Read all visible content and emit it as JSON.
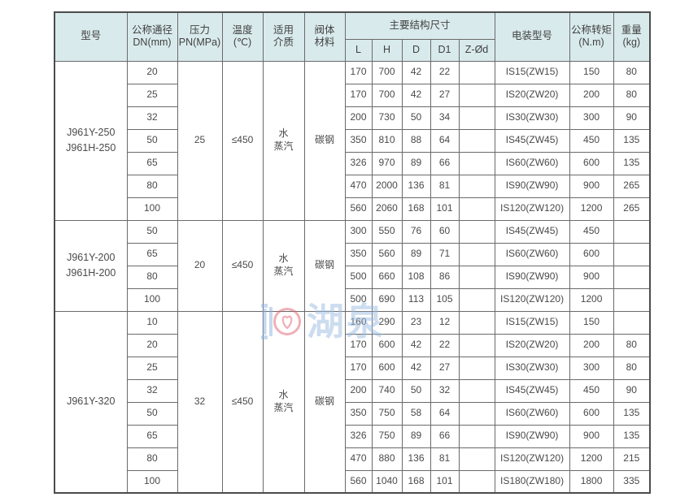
{
  "table": {
    "header": {
      "model": "型号",
      "dn": "公称通径\nDN(mm)",
      "pn": "压力\nPN(MPa)",
      "temp": "温度\n(℃)",
      "medium": "适用\n介质",
      "material": "阀体\n材料",
      "dims_group": "主要结构尺寸",
      "dims": [
        "L",
        "H",
        "D",
        "D1",
        "Z-Ød"
      ],
      "device": "电装型号",
      "torque": "公称转矩\n(N.m)",
      "weight": "重量\n(kg)"
    },
    "sections": [
      {
        "model": "J961Y-250\nJ961H-250",
        "pn": "25",
        "temp": "≤450",
        "medium": "水\n蒸汽",
        "material": "碳钢",
        "rows": [
          {
            "dn": "20",
            "l": "170",
            "h": "700",
            "d": "42",
            "d1": "22",
            "zod": "",
            "device": "IS15(ZW15)",
            "torque": "150",
            "weight": "80"
          },
          {
            "dn": "25",
            "l": "170",
            "h": "700",
            "d": "42",
            "d1": "27",
            "zod": "",
            "device": "IS20(ZW20)",
            "torque": "200",
            "weight": "80"
          },
          {
            "dn": "32",
            "l": "200",
            "h": "730",
            "d": "50",
            "d1": "34",
            "zod": "",
            "device": "IS30(ZW30)",
            "torque": "300",
            "weight": "90"
          },
          {
            "dn": "50",
            "l": "350",
            "h": "810",
            "d": "88",
            "d1": "64",
            "zod": "",
            "device": "IS45(ZW45)",
            "torque": "450",
            "weight": "135"
          },
          {
            "dn": "65",
            "l": "326",
            "h": "970",
            "d": "89",
            "d1": "66",
            "zod": "",
            "device": "IS60(ZW60)",
            "torque": "600",
            "weight": "135"
          },
          {
            "dn": "80",
            "l": "470",
            "h": "2000",
            "d": "136",
            "d1": "81",
            "zod": "",
            "device": "IS90(ZW90)",
            "torque": "900",
            "weight": "265"
          },
          {
            "dn": "100",
            "l": "560",
            "h": "2060",
            "d": "168",
            "d1": "101",
            "zod": "",
            "device": "IS120(ZW120)",
            "torque": "1200",
            "weight": "265"
          }
        ]
      },
      {
        "model": "J961Y-200\nJ961H-200",
        "pn": "20",
        "temp": "≤450",
        "medium": "水\n蒸汽",
        "material": "碳钢",
        "rows": [
          {
            "dn": "50",
            "l": "300",
            "h": "550",
            "d": "76",
            "d1": "60",
            "zod": "",
            "device": "IS45(ZW45)",
            "torque": "450",
            "weight": ""
          },
          {
            "dn": "65",
            "l": "350",
            "h": "560",
            "d": "89",
            "d1": "71",
            "zod": "",
            "device": "IS60(ZW60)",
            "torque": "600",
            "weight": ""
          },
          {
            "dn": "80",
            "l": "500",
            "h": "660",
            "d": "108",
            "d1": "86",
            "zod": "",
            "device": "IS90(ZW90)",
            "torque": "900",
            "weight": ""
          },
          {
            "dn": "100",
            "l": "500",
            "h": "690",
            "d": "113",
            "d1": "105",
            "zod": "",
            "device": "IS120(ZW120)",
            "torque": "1200",
            "weight": ""
          }
        ]
      },
      {
        "model": "J961Y-320",
        "pn": "32",
        "temp": "≤450",
        "medium": "水\n蒸汽",
        "material": "碳钢",
        "rows": [
          {
            "dn": "10",
            "l": "160",
            "h": "290",
            "d": "23",
            "d1": "12",
            "zod": "",
            "device": "IS15(ZW15)",
            "torque": "150",
            "weight": ""
          },
          {
            "dn": "20",
            "l": "170",
            "h": "600",
            "d": "42",
            "d1": "22",
            "zod": "",
            "device": "IS20(ZW20)",
            "torque": "200",
            "weight": "80"
          },
          {
            "dn": "25",
            "l": "170",
            "h": "600",
            "d": "42",
            "d1": "27",
            "zod": "",
            "device": "IS30(ZW30)",
            "torque": "300",
            "weight": "80"
          },
          {
            "dn": "32",
            "l": "200",
            "h": "740",
            "d": "50",
            "d1": "32",
            "zod": "",
            "device": "IS45(ZW45)",
            "torque": "450",
            "weight": "90"
          },
          {
            "dn": "50",
            "l": "350",
            "h": "750",
            "d": "58",
            "d1": "64",
            "zod": "",
            "device": "IS60(ZW60)",
            "torque": "600",
            "weight": "135"
          },
          {
            "dn": "65",
            "l": "326",
            "h": "750",
            "d": "89",
            "d1": "66",
            "zod": "",
            "device": "IS90(ZW90)",
            "torque": "900",
            "weight": "135"
          },
          {
            "dn": "80",
            "l": "470",
            "h": "880",
            "d": "136",
            "d1": "81",
            "zod": "",
            "device": "IS120(ZW120)",
            "torque": "1200",
            "weight": "215"
          },
          {
            "dn": "100",
            "l": "560",
            "h": "1040",
            "d": "168",
            "d1": "101",
            "zod": "",
            "device": "IS180(ZW180)",
            "torque": "1800",
            "weight": "335"
          }
        ]
      }
    ]
  },
  "watermark": {
    "text": "湖泉",
    "blue": "#8fb3de",
    "red": "#e2616e"
  }
}
